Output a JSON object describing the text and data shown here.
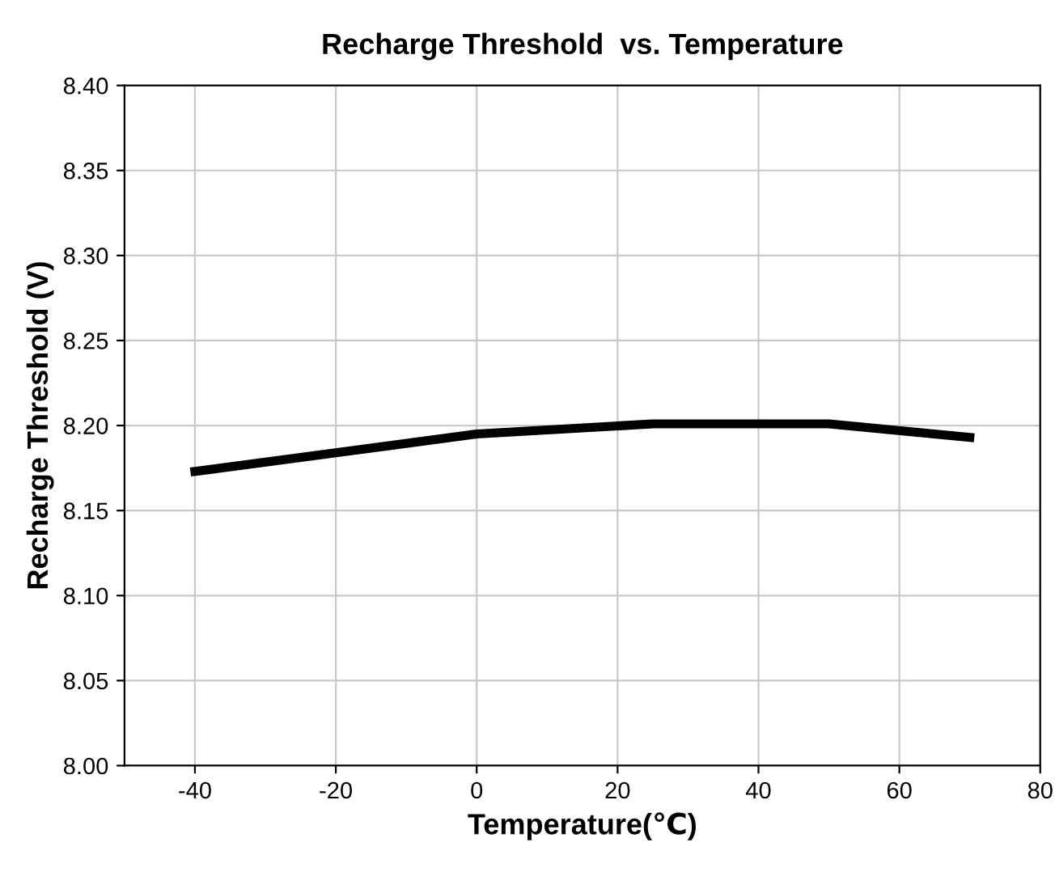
{
  "chart_data": {
    "type": "line",
    "title": "Recharge Threshold  vs. Temperature",
    "xlabel": "Temperature(℃)",
    "ylabel": "Recharge Threshold (V)",
    "x": [
      -40,
      -20,
      0,
      25,
      50,
      70
    ],
    "series": [
      {
        "color": "#000000",
        "values": [
          8.173,
          8.184,
          8.195,
          8.201,
          8.201,
          8.193
        ]
      }
    ],
    "xlim": [
      -50,
      80
    ],
    "xticks": [
      -40,
      -20,
      0,
      20,
      40,
      60,
      80
    ],
    "ylim": [
      8.0,
      8.4
    ],
    "yticks": [
      {
        "value": 8.0,
        "label": "8.00"
      },
      {
        "value": 8.05,
        "label": "8.05"
      },
      {
        "value": 8.1,
        "label": "8.10"
      },
      {
        "value": 8.15,
        "label": "8.15"
      },
      {
        "value": 8.2,
        "label": "8.20"
      },
      {
        "value": 8.25,
        "label": "8.25"
      },
      {
        "value": 8.3,
        "label": "8.30"
      },
      {
        "value": 8.35,
        "label": "8.35"
      },
      {
        "value": 8.4,
        "label": "8.40"
      }
    ],
    "grid": true,
    "legend": false,
    "marker": "none",
    "line_style": "solid"
  }
}
